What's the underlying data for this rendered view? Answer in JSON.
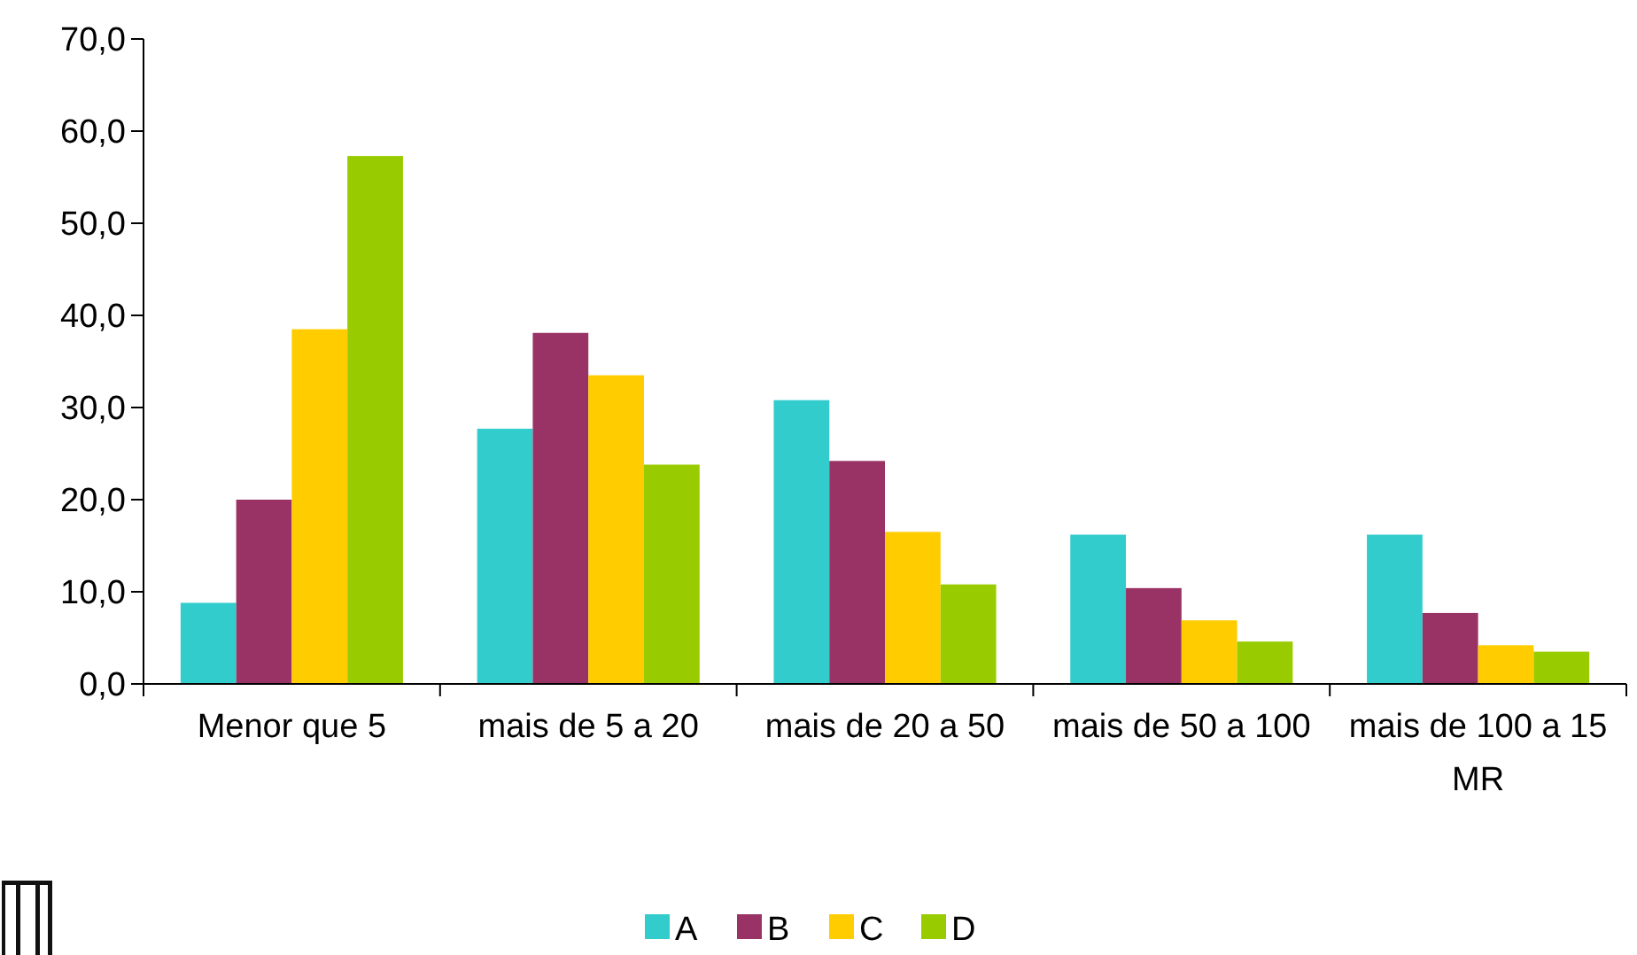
{
  "chart_data": {
    "type": "bar",
    "categories": [
      "Menor que 5",
      "mais de 5 a 20",
      "mais de 20 a 50",
      "mais de 50 a 100",
      "mais de 100 a 15 MR"
    ],
    "series": [
      {
        "name": "A",
        "color": "#33cccc",
        "values": [
          8.8,
          27.7,
          30.8,
          16.2,
          16.2
        ]
      },
      {
        "name": "B",
        "color": "#993366",
        "values": [
          20.0,
          38.1,
          24.2,
          10.4,
          7.7
        ]
      },
      {
        "name": "C",
        "color": "#ffcc00",
        "values": [
          38.5,
          33.5,
          16.5,
          6.9,
          4.2
        ]
      },
      {
        "name": "D",
        "color": "#99cc00",
        "values": [
          57.3,
          23.8,
          10.8,
          4.6,
          3.5
        ]
      }
    ],
    "ylim": [
      0,
      70
    ],
    "yticks": [
      {
        "value": 0,
        "label": "0,0"
      },
      {
        "value": 10,
        "label": "10,0"
      },
      {
        "value": 20,
        "label": "20,0"
      },
      {
        "value": 30,
        "label": "30,0"
      },
      {
        "value": 40,
        "label": "40,0"
      },
      {
        "value": 50,
        "label": "50,0"
      },
      {
        "value": 60,
        "label": "60,0"
      },
      {
        "value": 70,
        "label": "70,0"
      }
    ],
    "grid": false,
    "legend": "bottom"
  }
}
